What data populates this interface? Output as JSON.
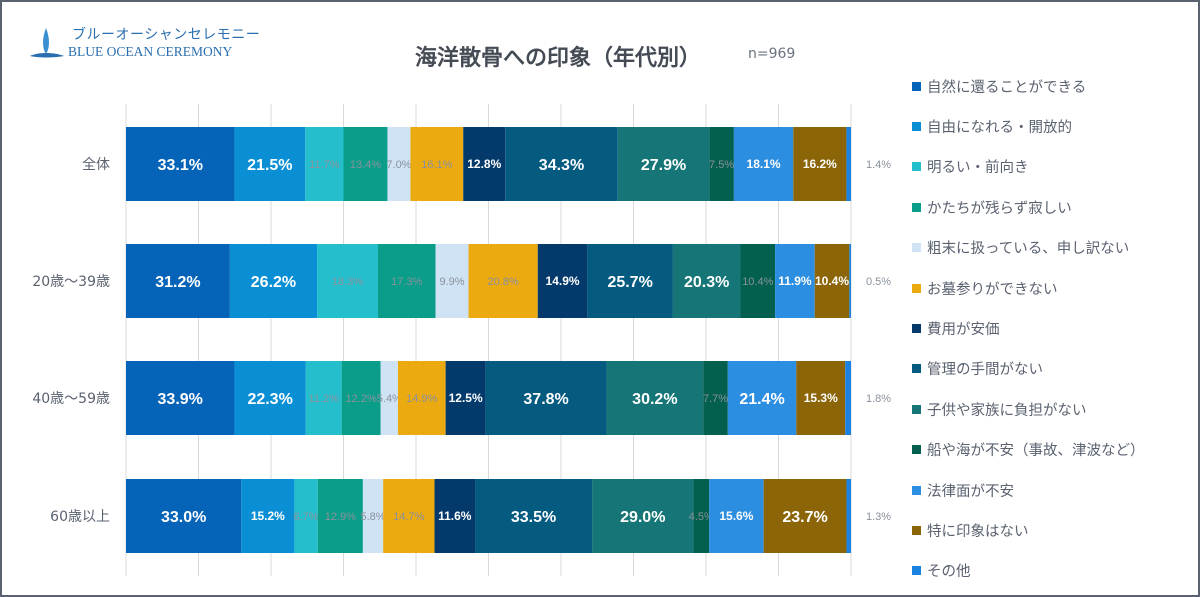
{
  "logo": {
    "jp": "ブルーオーシャンセレモニー",
    "en": "BLUE OCEAN CEREMONY"
  },
  "chart_data": {
    "type": "bar",
    "orientation": "horizontal",
    "stacked": "100%",
    "title": "海洋散骨への印象（年代別）",
    "subtitle": "n=969",
    "categories": [
      "全体",
      "20歳～39歳",
      "40歳～59歳",
      "60歳以上"
    ],
    "grid": true,
    "legend_position": "right",
    "series": [
      {
        "name": "自然に還ることができる",
        "color": "#0563B8",
        "values": [
          33.1,
          31.2,
          33.9,
          33.0
        ]
      },
      {
        "name": "自由になれる・開放的",
        "color": "#0A8FD4",
        "values": [
          21.5,
          26.2,
          22.3,
          15.2
        ]
      },
      {
        "name": "明るい・前向き",
        "color": "#25BECC",
        "values": [
          11.7,
          18.3,
          11.2,
          6.7
        ]
      },
      {
        "name": "かたちが残らず寂しい",
        "color": "#0A9E8A",
        "values": [
          13.4,
          17.3,
          12.2,
          12.9
        ]
      },
      {
        "name": "粗末に扱っている、申し訳ない",
        "color": "#CFE3F5",
        "values": [
          7.0,
          9.9,
          5.4,
          5.8
        ]
      },
      {
        "name": "お墓参りができない",
        "color": "#EBAA10",
        "values": [
          16.1,
          20.8,
          14.9,
          14.7
        ]
      },
      {
        "name": "費用が安価",
        "color": "#033A6B",
        "values": [
          12.8,
          14.9,
          12.5,
          11.6
        ]
      },
      {
        "name": "管理の手間がない",
        "color": "#055A80",
        "values": [
          34.3,
          25.7,
          37.8,
          33.5
        ]
      },
      {
        "name": "子供や家族に負担がない",
        "color": "#167577",
        "values": [
          27.9,
          20.3,
          30.2,
          29.0
        ]
      },
      {
        "name": "船や海が不安（事故、津波など）",
        "color": "#04604E",
        "values": [
          7.5,
          10.4,
          7.7,
          4.5
        ]
      },
      {
        "name": "法律面が不安",
        "color": "#2C8EE0",
        "values": [
          18.1,
          11.9,
          21.4,
          15.6
        ]
      },
      {
        "name": "特に印象はない",
        "color": "#8C6508",
        "values": [
          16.2,
          10.4,
          15.3,
          23.7
        ]
      },
      {
        "name": "その他",
        "color": "#1A82E0",
        "values": [
          1.4,
          0.5,
          1.8,
          1.3
        ]
      }
    ]
  }
}
